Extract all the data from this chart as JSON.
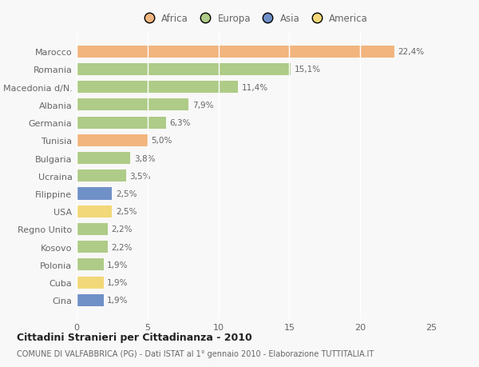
{
  "countries": [
    "Marocco",
    "Romania",
    "Macedonia d/N.",
    "Albania",
    "Germania",
    "Tunisia",
    "Bulgaria",
    "Ucraina",
    "Filippine",
    "USA",
    "Regno Unito",
    "Kosovo",
    "Polonia",
    "Cuba",
    "Cina"
  ],
  "values": [
    22.4,
    15.1,
    11.4,
    7.9,
    6.3,
    5.0,
    3.8,
    3.5,
    2.5,
    2.5,
    2.2,
    2.2,
    1.9,
    1.9,
    1.9
  ],
  "labels": [
    "22,4%",
    "15,1%",
    "11,4%",
    "7,9%",
    "6,3%",
    "5,0%",
    "3,8%",
    "3,5%",
    "2,5%",
    "2,5%",
    "2,2%",
    "2,2%",
    "1,9%",
    "1,9%",
    "1,9%"
  ],
  "bar_colors": [
    "#F2B57E",
    "#AECB87",
    "#AECB87",
    "#AECB87",
    "#AECB87",
    "#F2B57E",
    "#AECB87",
    "#AECB87",
    "#7090C8",
    "#F2D878",
    "#AECB87",
    "#AECB87",
    "#AECB87",
    "#F2D878",
    "#7090C8"
  ],
  "title": "Cittadini Stranieri per Cittadinanza - 2010",
  "subtitle": "COMUNE DI VALFABBRICA (PG) - Dati ISTAT al 1° gennaio 2010 - Elaborazione TUTTITALIA.IT",
  "xlim": [
    0,
    25
  ],
  "xticks": [
    0,
    5,
    10,
    15,
    20,
    25
  ],
  "background_color": "#f8f8f8",
  "grid_color": "#ffffff",
  "label_color": "#666666",
  "legend_labels": [
    "Africa",
    "Europa",
    "Asia",
    "America"
  ],
  "legend_colors": [
    "#F2B57E",
    "#AECB87",
    "#7090C8",
    "#F2D878"
  ]
}
